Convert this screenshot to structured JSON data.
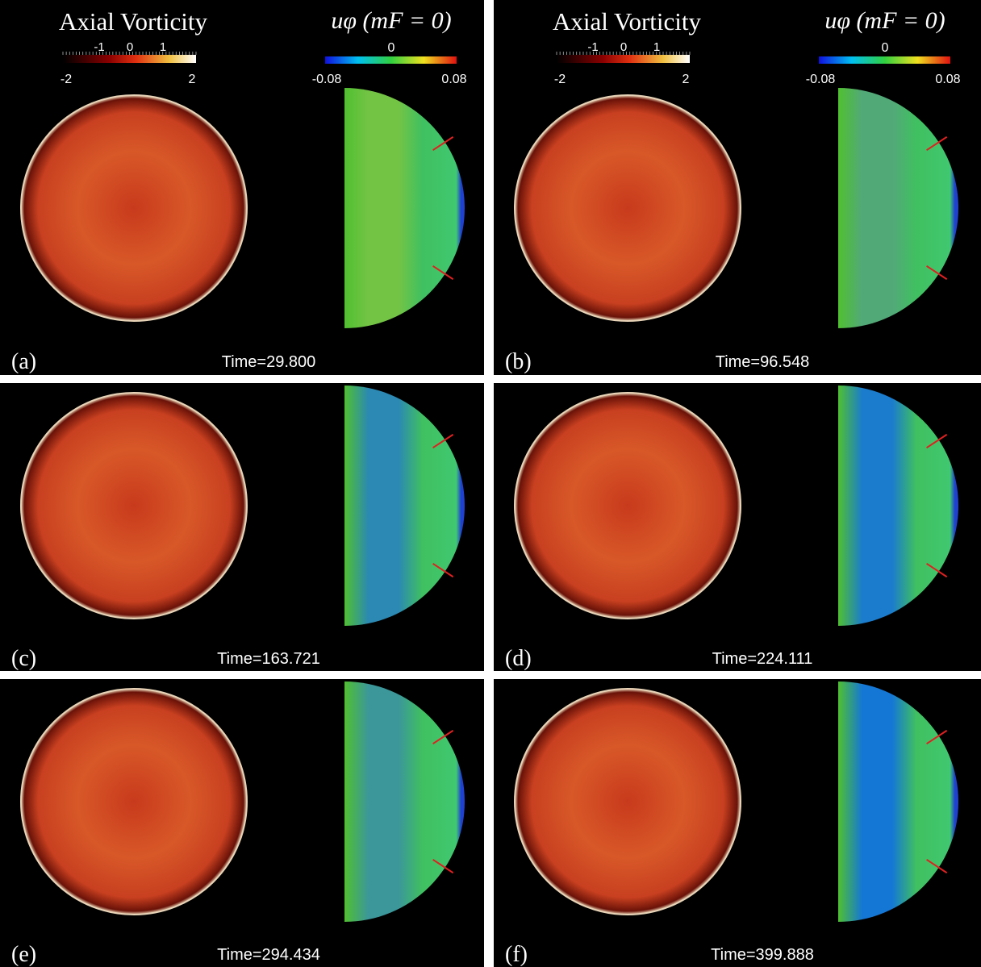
{
  "colorbars": {
    "vorticity": {
      "title": "Axial Vorticity",
      "inner_ticks": [
        "-1",
        "0",
        "1"
      ],
      "end_ticks": [
        "-2",
        "2"
      ]
    },
    "velocity": {
      "title": "uφ (mF = 0)",
      "ticks": [
        "-0.08",
        "0",
        "0.08"
      ]
    }
  },
  "panels": [
    {
      "label": "(a)",
      "time": "Time=29.800"
    },
    {
      "label": "(b)",
      "time": "Time=96.548"
    },
    {
      "label": "(c)",
      "time": "Time=163.721"
    },
    {
      "label": "(d)",
      "time": "Time=224.111"
    },
    {
      "label": "(e)",
      "time": "Time=294.434"
    },
    {
      "label": "(f)",
      "time": "Time=399.888"
    }
  ]
}
